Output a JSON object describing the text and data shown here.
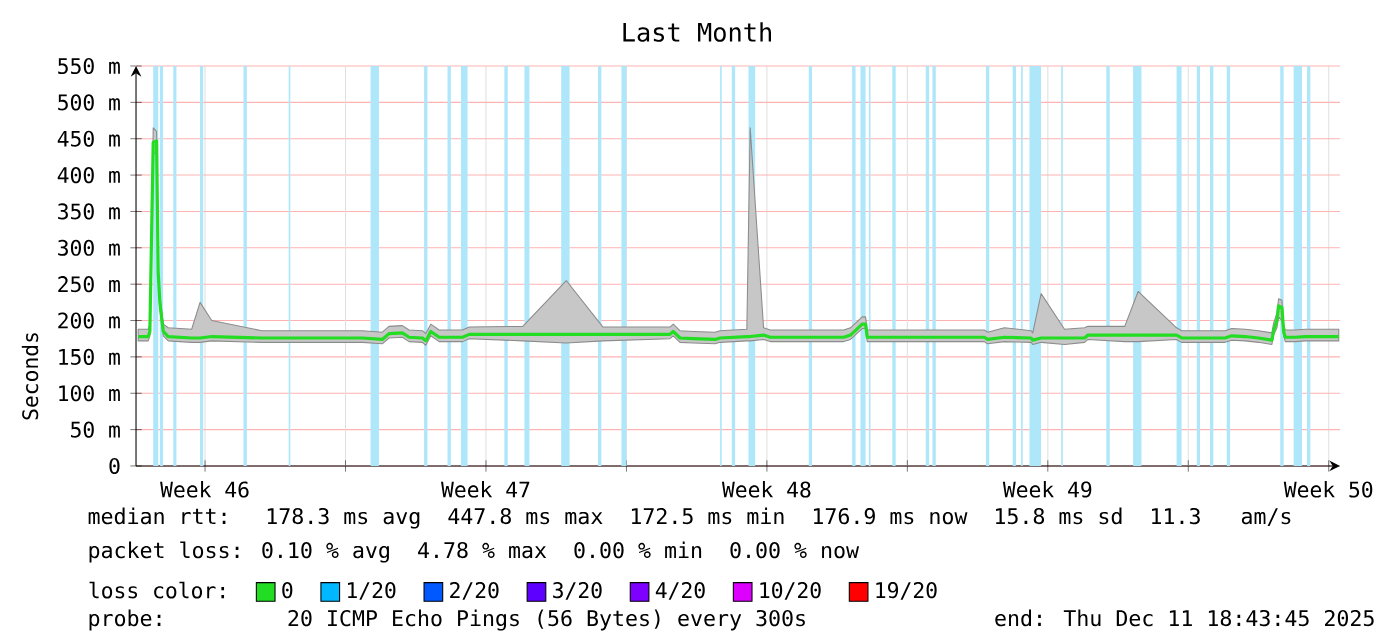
{
  "chart_data": {
    "type": "line",
    "title": "Last Month",
    "ylabel": "Seconds",
    "legend_title": "loss color:",
    "legend": "bottom",
    "grid": true,
    "x": [
      "2025-11-11T20:00",
      "2025-11-12T02:00",
      "2025-11-12T03:00",
      "2025-11-12T05:00",
      "2025-11-12T07:00",
      "2025-11-12T08:00",
      "2025-11-12T09:00",
      "2025-11-12T11:00",
      "2025-11-12T14:00",
      "2025-11-13T04:00",
      "2025-11-13T09:00",
      "2025-11-13T16:00",
      "2025-11-14T22:00",
      "2025-11-17T10:00",
      "2025-11-17T22:00",
      "2025-11-18T02:00",
      "2025-11-18T10:00",
      "2025-11-18T14:00",
      "2025-11-18T22:00",
      "2025-11-19T00:00",
      "2025-11-19T03:00",
      "2025-11-19T08:00",
      "2025-11-19T22:00",
      "2025-11-20T02:00",
      "2025-11-21T10:00",
      "2025-11-22T12:00",
      "2025-11-23T10:00",
      "2025-11-25T02:00",
      "2025-11-25T04:00",
      "2025-11-25T08:00",
      "2025-11-25T16:00",
      "2025-11-26T05:00",
      "2025-11-26T08:00",
      "2025-11-27T00:00",
      "2025-11-27T02:00",
      "2025-11-27T10:00",
      "2025-11-27T14:00",
      "2025-11-29T10:00",
      "2025-11-29T14:00",
      "2025-11-29T21:00",
      "2025-11-29T23:00",
      "2025-11-30T00:00",
      "2025-12-02T22:00",
      "2025-12-03T00:00",
      "2025-12-03T10:00",
      "2025-12-04T02:00",
      "2025-12-04T03:00",
      "2025-12-04T08:00",
      "2025-12-04T22:00",
      "2025-12-05T10:00",
      "2025-12-05T12:00",
      "2025-12-06T10:00",
      "2025-12-06T18:00",
      "2025-12-07T17:00",
      "2025-12-07T20:00",
      "2025-12-08T22:00",
      "2025-12-09T02:00",
      "2025-12-09T10:00",
      "2025-12-09T18:00",
      "2025-12-10T02:00",
      "2025-12-10T03:00",
      "2025-12-10T05:00",
      "2025-12-10T06:00",
      "2025-12-10T08:00",
      "2025-12-10T09:00",
      "2025-12-10T10:00",
      "2025-12-10T16:00",
      "2025-12-10T22:00",
      "2025-12-11T10:00",
      "2025-12-11T18:00"
    ],
    "xlim": [
      "2025-11-11T18:43",
      "2025-12-11T18:43"
    ],
    "xticks": [
      {
        "value": "2025-11-13T12:00",
        "label": "Week 46"
      },
      {
        "value": "2025-11-17",
        "label": null
      },
      {
        "value": "2025-11-20T12:00",
        "label": "Week 47"
      },
      {
        "value": "2025-11-24",
        "label": null
      },
      {
        "value": "2025-11-27T12:00",
        "label": "Week 48"
      },
      {
        "value": "2025-12-01",
        "label": null
      },
      {
        "value": "2025-12-04T12:00",
        "label": "Week 49"
      },
      {
        "value": "2025-12-08",
        "label": null
      },
      {
        "value": "2025-12-11T12:00",
        "label": "Week 50"
      }
    ],
    "ylim": [
      0,
      550
    ],
    "yticks": [
      {
        "value": 0,
        "label": "0"
      },
      {
        "value": 50,
        "label": "50 m"
      },
      {
        "value": 100,
        "label": "100 m"
      },
      {
        "value": 150,
        "label": "150 m"
      },
      {
        "value": 200,
        "label": "200 m"
      },
      {
        "value": 250,
        "label": "250 m"
      },
      {
        "value": 300,
        "label": "300 m"
      },
      {
        "value": 350,
        "label": "350 m"
      },
      {
        "value": 400,
        "label": "400 m"
      },
      {
        "value": 450,
        "label": "450 m"
      },
      {
        "value": 500,
        "label": "500 m"
      },
      {
        "value": 550,
        "label": "550 m"
      }
    ],
    "series": [
      {
        "name": "0",
        "color": "#22dd22",
        "values": [
          178,
          178,
          185,
          445,
          447,
          265,
          224,
          185,
          178,
          176,
          176,
          178,
          176,
          176,
          174,
          182,
          183,
          177,
          176,
          172,
          185,
          177,
          177,
          181,
          181,
          181,
          181,
          181,
          185,
          176,
          175,
          174,
          176,
          178,
          178,
          180,
          177,
          177,
          180,
          195,
          195,
          177,
          177,
          174,
          177,
          176,
          173,
          176,
          176,
          176,
          180,
          180,
          180,
          180,
          176,
          176,
          179,
          178,
          176,
          173,
          186,
          200,
          220,
          218,
          185,
          177,
          177,
          178,
          178,
          178
        ],
        "lower": [
          172,
          172,
          179,
          430,
          430,
          255,
          215,
          179,
          172,
          170,
          170,
          172,
          170,
          170,
          168,
          176,
          177,
          171,
          170,
          166,
          179,
          171,
          171,
          175,
          172,
          169,
          172,
          175,
          179,
          170,
          169,
          168,
          170,
          172,
          172,
          174,
          171,
          171,
          174,
          189,
          189,
          171,
          171,
          168,
          171,
          170,
          167,
          170,
          167,
          170,
          174,
          171,
          171,
          174,
          170,
          170,
          173,
          172,
          170,
          167,
          180,
          190,
          205,
          200,
          179,
          171,
          171,
          172,
          172,
          172
        ],
        "upper": [
          188,
          188,
          195,
          465,
          460,
          275,
          234,
          195,
          190,
          188,
          225,
          200,
          186,
          186,
          184,
          192,
          193,
          187,
          186,
          182,
          195,
          187,
          187,
          191,
          192,
          255,
          191,
          191,
          195,
          186,
          185,
          184,
          186,
          188,
          465,
          190,
          187,
          187,
          190,
          205,
          205,
          187,
          187,
          184,
          190,
          186,
          183,
          237,
          188,
          190,
          192,
          192,
          240,
          190,
          186,
          186,
          189,
          188,
          186,
          183,
          196,
          210,
          230,
          228,
          195,
          187,
          187,
          188,
          188,
          188
        ]
      },
      {
        "name": "1/20",
        "color": "#00b8ff",
        "values": [
          null,
          null,
          null,
          null,
          null,
          null,
          null,
          null,
          null,
          null,
          null,
          null,
          null,
          null,
          null,
          null,
          null,
          null,
          null,
          null,
          null,
          null,
          null,
          null,
          null,
          null,
          null,
          null,
          null,
          null,
          null,
          null,
          null,
          null,
          null,
          null,
          null,
          null,
          null,
          null,
          null,
          null,
          null,
          null,
          null,
          null,
          null,
          null,
          null,
          null,
          null,
          null,
          null,
          null,
          null,
          null,
          null,
          null,
          null,
          null,
          null,
          null,
          null,
          null,
          null,
          null,
          null,
          null,
          null,
          null
        ]
      },
      {
        "name": "2/20",
        "color": "#0059ff",
        "values": [
          null,
          null,
          null,
          null,
          null,
          null,
          null,
          null,
          null,
          null,
          null,
          null,
          null,
          null,
          null,
          null,
          null,
          null,
          null,
          null,
          null,
          null,
          null,
          null,
          null,
          null,
          null,
          null,
          null,
          null,
          null,
          null,
          null,
          null,
          null,
          null,
          null,
          null,
          null,
          null,
          null,
          null,
          null,
          null,
          null,
          null,
          null,
          null,
          null,
          null,
          null,
          null,
          null,
          null,
          null,
          null,
          null,
          null,
          null,
          null,
          null,
          null,
          null,
          null,
          null,
          null,
          null,
          null,
          null,
          null
        ]
      },
      {
        "name": "3/20",
        "color": "#5e00ff",
        "values": [
          null,
          null,
          null,
          null,
          null,
          null,
          null,
          null,
          null,
          null,
          null,
          null,
          null,
          null,
          null,
          null,
          null,
          null,
          null,
          null,
          null,
          null,
          null,
          null,
          null,
          null,
          null,
          null,
          null,
          null,
          null,
          null,
          null,
          null,
          null,
          null,
          null,
          null,
          null,
          null,
          null,
          null,
          null,
          null,
          null,
          null,
          null,
          null,
          null,
          null,
          null,
          null,
          null,
          null,
          null,
          null,
          null,
          null,
          null,
          null,
          null,
          null,
          null,
          null,
          null,
          null,
          null,
          null,
          null,
          null
        ]
      },
      {
        "name": "4/20",
        "color": "#7e00ff",
        "values": [
          null,
          null,
          null,
          null,
          null,
          null,
          null,
          null,
          null,
          null,
          null,
          null,
          null,
          null,
          null,
          null,
          null,
          null,
          null,
          null,
          null,
          null,
          null,
          null,
          null,
          null,
          null,
          null,
          null,
          null,
          null,
          null,
          null,
          null,
          null,
          null,
          null,
          null,
          null,
          null,
          null,
          null,
          null,
          null,
          null,
          null,
          null,
          null,
          null,
          null,
          null,
          null,
          null,
          null,
          null,
          null,
          null,
          null,
          null,
          null,
          null,
          null,
          null,
          null,
          null,
          null,
          null,
          null,
          null,
          null
        ]
      },
      {
        "name": "10/20",
        "color": "#dd00ff",
        "values": [
          null,
          null,
          null,
          null,
          null,
          null,
          null,
          null,
          null,
          null,
          null,
          null,
          null,
          null,
          null,
          null,
          null,
          null,
          null,
          null,
          null,
          null,
          null,
          null,
          null,
          null,
          null,
          null,
          null,
          null,
          null,
          null,
          null,
          null,
          null,
          null,
          null,
          null,
          null,
          null,
          null,
          null,
          null,
          null,
          null,
          null,
          null,
          null,
          null,
          null,
          null,
          null,
          null,
          null,
          null,
          null,
          null,
          null,
          null,
          null,
          null,
          null,
          null,
          null,
          null,
          null,
          null,
          null,
          null,
          null
        ]
      },
      {
        "name": "19/20",
        "color": "#ff0000",
        "values": [
          null,
          null,
          null,
          null,
          null,
          null,
          null,
          null,
          null,
          null,
          null,
          null,
          null,
          null,
          null,
          null,
          null,
          null,
          null,
          null,
          null,
          null,
          null,
          null,
          null,
          null,
          null,
          null,
          null,
          null,
          null,
          null,
          null,
          null,
          null,
          null,
          null,
          null,
          null,
          null,
          null,
          null,
          null,
          null,
          null,
          null,
          null,
          null,
          null,
          null,
          null,
          null,
          null,
          null,
          null,
          null,
          null,
          null,
          null,
          null,
          null,
          null,
          null,
          null,
          null,
          null,
          null,
          null,
          null,
          null
        ]
      }
    ],
    "bands": [
      {
        "axis": "x",
        "from": "2025-11-12T05:00",
        "to": "2025-11-12T08:00",
        "color": "#aee6fa"
      },
      {
        "axis": "x",
        "from": "2025-11-12T09:00",
        "to": "2025-11-12T11:00",
        "color": "#aee6fa"
      },
      {
        "axis": "x",
        "from": "2025-11-12T17:00",
        "to": "2025-11-12T19:00",
        "color": "#aee6fa"
      },
      {
        "axis": "x",
        "from": "2025-11-13T09:00",
        "to": "2025-11-13T11:00",
        "color": "#aee6fa"
      },
      {
        "axis": "x",
        "from": "2025-11-14T11:00",
        "to": "2025-11-14T13:00",
        "color": "#aee6fa"
      },
      {
        "axis": "x",
        "from": "2025-11-15T14:00",
        "to": "2025-11-15T15:00",
        "color": "#aee6fa"
      },
      {
        "axis": "x",
        "from": "2025-11-17T15:00",
        "to": "2025-11-17T20:00",
        "color": "#aee6fa"
      },
      {
        "axis": "x",
        "from": "2025-11-18T23:00",
        "to": "2025-11-19T01:00",
        "color": "#aee6fa"
      },
      {
        "axis": "x",
        "from": "2025-11-19T13:00",
        "to": "2025-11-19T15:00",
        "color": "#aee6fa"
      },
      {
        "axis": "x",
        "from": "2025-11-19T21:00",
        "to": "2025-11-20T01:00",
        "color": "#aee6fa"
      },
      {
        "axis": "x",
        "from": "2025-11-20T23:00",
        "to": "2025-11-21T01:00",
        "color": "#aee6fa"
      },
      {
        "axis": "x",
        "from": "2025-11-21T11:00",
        "to": "2025-11-21T14:00",
        "color": "#aee6fa"
      },
      {
        "axis": "x",
        "from": "2025-11-22T09:00",
        "to": "2025-11-22T14:00",
        "color": "#aee6fa"
      },
      {
        "axis": "x",
        "from": "2025-11-23T07:00",
        "to": "2025-11-23T09:00",
        "color": "#aee6fa"
      },
      {
        "axis": "x",
        "from": "2025-11-23T21:00",
        "to": "2025-11-24T00:00",
        "color": "#aee6fa"
      },
      {
        "axis": "x",
        "from": "2025-11-26T08:00",
        "to": "2025-11-26T09:00",
        "color": "#aee6fa"
      },
      {
        "axis": "x",
        "from": "2025-11-26T15:00",
        "to": "2025-11-26T17:00",
        "color": "#aee6fa"
      },
      {
        "axis": "x",
        "from": "2025-11-27T01:00",
        "to": "2025-11-27T05:00",
        "color": "#aee6fa"
      },
      {
        "axis": "x",
        "from": "2025-11-28T13:00",
        "to": "2025-11-28T15:00",
        "color": "#aee6fa"
      },
      {
        "axis": "x",
        "from": "2025-11-29T15:00",
        "to": "2025-11-29T17:00",
        "color": "#aee6fa"
      },
      {
        "axis": "x",
        "from": "2025-11-29T20:00",
        "to": "2025-11-29T23:00",
        "color": "#aee6fa"
      },
      {
        "axis": "x",
        "from": "2025-11-30T01:00",
        "to": "2025-11-30T02:00",
        "color": "#aee6fa"
      },
      {
        "axis": "x",
        "from": "2025-11-30T15:00",
        "to": "2025-11-30T17:00",
        "color": "#aee6fa"
      },
      {
        "axis": "x",
        "from": "2025-12-01T11:00",
        "to": "2025-12-01T13:00",
        "color": "#aee6fa"
      },
      {
        "axis": "x",
        "from": "2025-12-01T15:00",
        "to": "2025-12-01T17:00",
        "color": "#aee6fa"
      },
      {
        "axis": "x",
        "from": "2025-12-02T23:00",
        "to": "2025-12-03T01:00",
        "color": "#aee6fa"
      },
      {
        "axis": "x",
        "from": "2025-12-03T15:00",
        "to": "2025-12-03T17:00",
        "color": "#aee6fa"
      },
      {
        "axis": "x",
        "from": "2025-12-03T20:00",
        "to": "2025-12-03T21:00",
        "color": "#aee6fa"
      },
      {
        "axis": "x",
        "from": "2025-12-04T01:00",
        "to": "2025-12-04T08:00",
        "color": "#aee6fa"
      },
      {
        "axis": "x",
        "from": "2025-12-04T20:00",
        "to": "2025-12-04T21:00",
        "color": "#aee6fa"
      },
      {
        "axis": "x",
        "from": "2025-12-05T23:00",
        "to": "2025-12-06T01:00",
        "color": "#aee6fa"
      },
      {
        "axis": "x",
        "from": "2025-12-06T15:00",
        "to": "2025-12-06T20:00",
        "color": "#aee6fa"
      },
      {
        "axis": "x",
        "from": "2025-12-07T17:00",
        "to": "2025-12-07T20:00",
        "color": "#aee6fa"
      },
      {
        "axis": "x",
        "from": "2025-12-08T05:00",
        "to": "2025-12-08T07:00",
        "color": "#aee6fa"
      },
      {
        "axis": "x",
        "from": "2025-12-08T13:00",
        "to": "2025-12-08T15:00",
        "color": "#aee6fa"
      },
      {
        "axis": "x",
        "from": "2025-12-08T23:00",
        "to": "2025-12-09T01:00",
        "color": "#aee6fa"
      },
      {
        "axis": "x",
        "from": "2025-12-10T07:00",
        "to": "2025-12-10T09:00",
        "color": "#aee6fa"
      },
      {
        "axis": "x",
        "from": "2025-12-10T15:00",
        "to": "2025-12-10T20:00",
        "color": "#aee6fa"
      },
      {
        "axis": "x",
        "from": "2025-12-10T23:00",
        "to": "2025-12-11T01:00",
        "color": "#aee6fa"
      }
    ],
    "annotations": [
      "median rtt:  178.3 ms avg  447.8 ms max  172.5 ms min  176.9 ms now  15.8 ms sd  11.3   am/s",
      "packet loss: 0.10 % avg  4.78 % max  0.00 % min  0.00 % now",
      "probe:       20 ICMP Echo Pings (56 Bytes) every 300s",
      "end: Thu Dec 11 18:43:45 2025"
    ]
  }
}
